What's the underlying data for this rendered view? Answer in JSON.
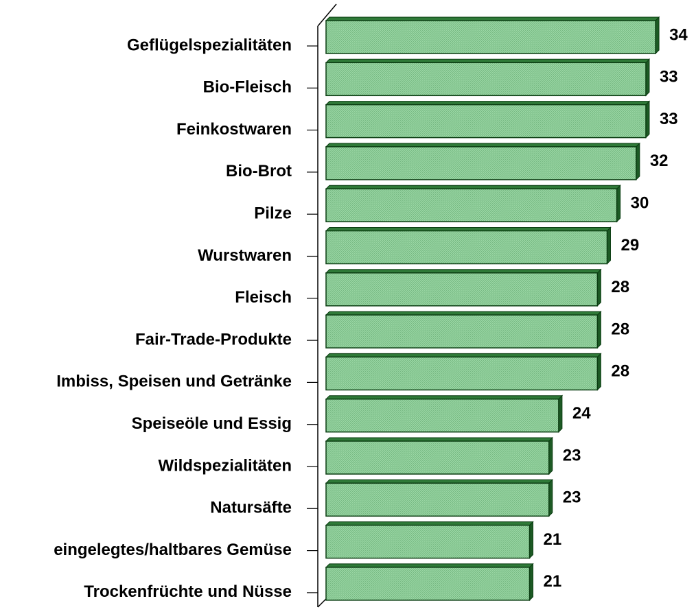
{
  "chart_data": {
    "type": "bar",
    "orientation": "horizontal",
    "categories": [
      "Geflügelspezialitäten",
      "Bio-Fleisch",
      "Feinkostwaren",
      "Bio-Brot",
      "Pilze",
      "Wurstwaren",
      "Fleisch",
      "Fair-Trade-Produkte",
      "Imbiss, Speisen und Getränke",
      "Speiseöle und Essig",
      "Wildspezialitäten",
      "Natursäfte",
      "eingelegtes/haltbares Gemüse",
      "Trockenfrüchte und Nüsse"
    ],
    "values": [
      34,
      33,
      33,
      32,
      30,
      29,
      28,
      28,
      28,
      24,
      23,
      23,
      21,
      21
    ],
    "color": "#8fcf9a",
    "edge_color": "#0b3d12"
  }
}
